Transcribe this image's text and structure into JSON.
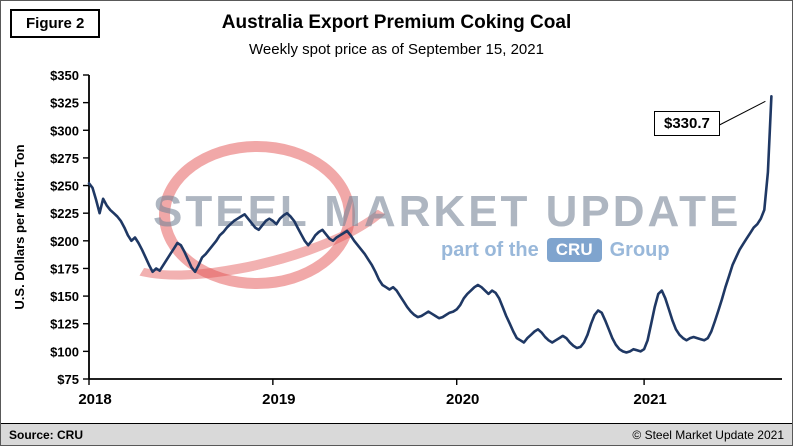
{
  "figure_label": "Figure 2",
  "title": "Australia Export Premium Coking Coal",
  "subtitle": "Weekly spot price as of September 15, 2021",
  "annotation": "$330.7",
  "watermark": {
    "main": "STEEL MARKET UPDATE",
    "part": "part of the",
    "cru": "CRU",
    "group": "Group"
  },
  "footer": {
    "source": "Source: CRU",
    "copyright": "© Steel Market Update 2021"
  },
  "chart_data": {
    "type": "line",
    "title": "Australia Export Premium Coking Coal",
    "subtitle": "Weekly spot price as of September 15, 2021",
    "xlabel": "",
    "ylabel": "U.S. Dollars per Metric Ton",
    "ylim": [
      75,
      350
    ],
    "grid": false,
    "legend": false,
    "line_color": "#1f3864",
    "y_ticks": [
      75,
      100,
      125,
      150,
      175,
      200,
      225,
      250,
      275,
      300,
      325,
      350
    ],
    "y_tick_labels": [
      "$75",
      "$100",
      "$125",
      "$150",
      "$175",
      "$200",
      "$225",
      "$250",
      "$275",
      "$300",
      "$325",
      "$350"
    ],
    "x_tick_labels": [
      "2018",
      "2019",
      "2020",
      "2021"
    ],
    "x_tick_weeks": [
      0,
      52,
      104,
      157
    ],
    "axis_weeks_total": 196,
    "last_point_annotation": "$330.7",
    "series": [
      {
        "name": "Weekly spot price (USD per metric ton)",
        "start": "2018 week 1",
        "end": "2021-09-15",
        "values": [
          252,
          248,
          237,
          225,
          238,
          232,
          228,
          225,
          222,
          218,
          212,
          205,
          200,
          203,
          198,
          192,
          185,
          178,
          172,
          175,
          173,
          178,
          183,
          188,
          193,
          198,
          196,
          190,
          183,
          176,
          172,
          178,
          185,
          188,
          192,
          196,
          200,
          205,
          208,
          212,
          215,
          218,
          220,
          222,
          224,
          220,
          216,
          212,
          210,
          214,
          218,
          220,
          218,
          215,
          220,
          223,
          225,
          222,
          218,
          212,
          206,
          200,
          196,
          200,
          205,
          208,
          210,
          206,
          202,
          200,
          203,
          205,
          207,
          209,
          205,
          200,
          196,
          192,
          188,
          183,
          178,
          172,
          165,
          160,
          158,
          156,
          158,
          155,
          150,
          145,
          140,
          136,
          133,
          131,
          132,
          134,
          136,
          134,
          132,
          130,
          131,
          133,
          135,
          136,
          138,
          142,
          148,
          152,
          155,
          158,
          160,
          158,
          155,
          152,
          155,
          153,
          148,
          140,
          132,
          125,
          118,
          112,
          110,
          108,
          112,
          115,
          118,
          120,
          117,
          113,
          110,
          108,
          110,
          112,
          114,
          112,
          108,
          105,
          103,
          104,
          108,
          115,
          125,
          133,
          137,
          135,
          128,
          120,
          112,
          106,
          102,
          100,
          99,
          100,
          102,
          101,
          100,
          102,
          110,
          125,
          140,
          152,
          155,
          148,
          138,
          128,
          120,
          115,
          112,
          110,
          112,
          113,
          112,
          111,
          110,
          112,
          118,
          127,
          137,
          147,
          158,
          168,
          178,
          185,
          192,
          197,
          202,
          207,
          212,
          215,
          220,
          228,
          262,
          330.7
        ]
      }
    ]
  }
}
